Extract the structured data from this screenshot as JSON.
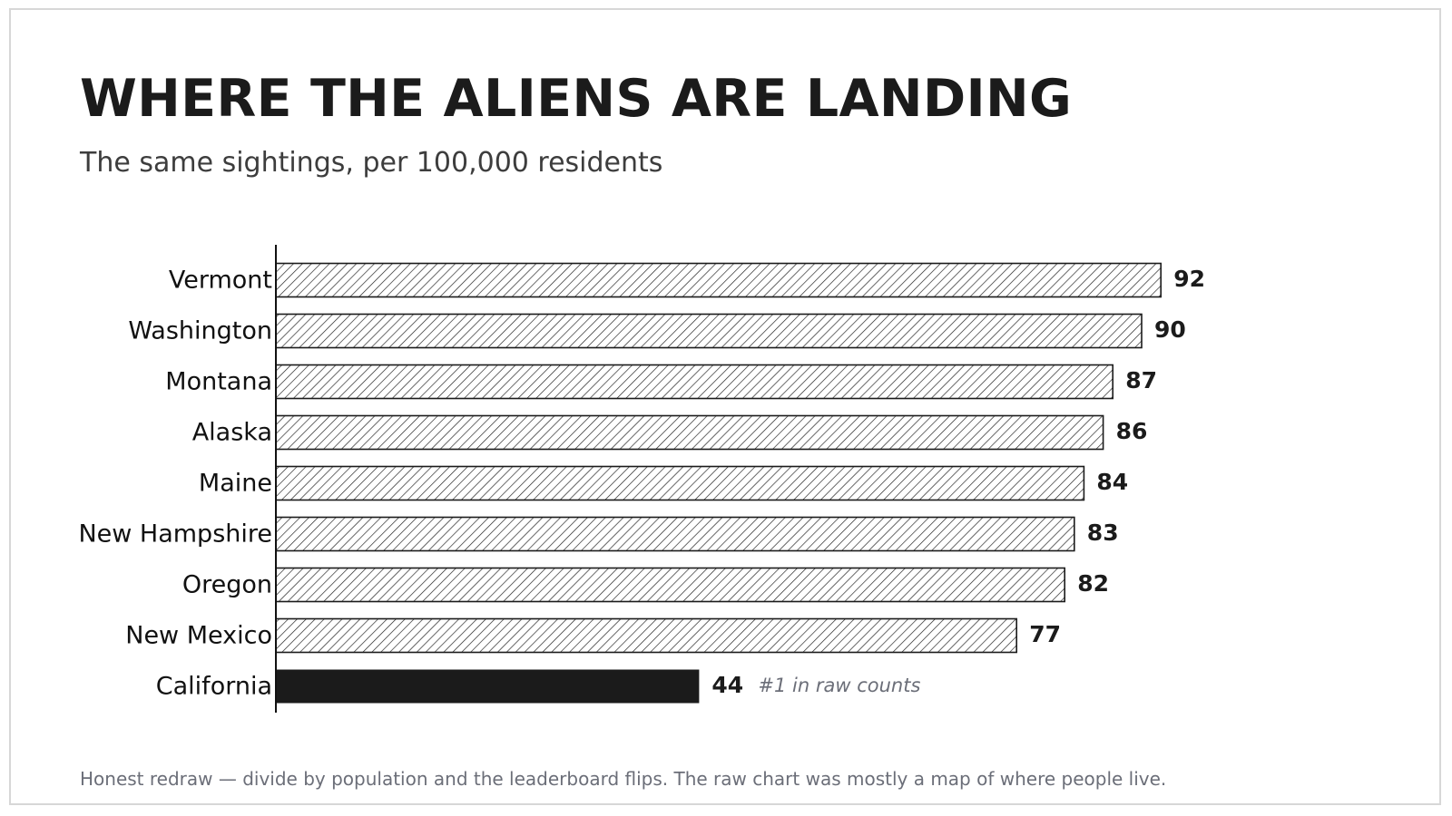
{
  "title": "WHERE THE ALIENS ARE LANDING",
  "subtitle": "The same sightings, per 100,000 residents",
  "footnote": "Honest redraw — divide by population and the leaderboard flips. The raw chart was mostly a map of where people live.",
  "colors": {
    "ink": "#1b1b1b",
    "highlight_bar": "#1b1b1b",
    "hatched_fill": "#ffffff",
    "note_text": "#6b6e78"
  },
  "chart_data": {
    "type": "bar",
    "orientation": "horizontal",
    "categories": [
      "Vermont",
      "Washington",
      "Montana",
      "Alaska",
      "Maine",
      "New Hampshire",
      "Oregon",
      "New Mexico",
      "California"
    ],
    "values": [
      92,
      90,
      87,
      86,
      84,
      83,
      82,
      77,
      44
    ],
    "highlight": "California",
    "annotations": [
      {
        "category": "California",
        "text": "#1 in raw counts"
      }
    ],
    "xlim": [
      0,
      100
    ],
    "bar_style": "diagonal hatch; highlighted bar solid",
    "grid": false,
    "legend": "none"
  }
}
